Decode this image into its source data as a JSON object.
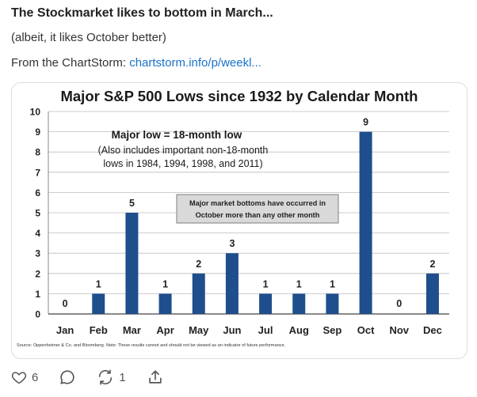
{
  "post": {
    "title": "The Stockmarket likes to bottom in March...",
    "subtitle": "(albeit, it likes October better)",
    "source_prefix": "From the ChartStorm: ",
    "source_link": "chartstorm.info/p/weekl..."
  },
  "chart_data": {
    "type": "bar",
    "title": "Major S&P 500 Lows since 1932 by Calendar Month",
    "categories": [
      "Jan",
      "Feb",
      "Mar",
      "Apr",
      "May",
      "Jun",
      "Jul",
      "Aug",
      "Sep",
      "Oct",
      "Nov",
      "Dec"
    ],
    "values": [
      0,
      1,
      5,
      1,
      2,
      3,
      1,
      1,
      1,
      9,
      0,
      2
    ],
    "ylim": [
      0,
      10
    ],
    "yticks": [
      0,
      1,
      2,
      3,
      4,
      5,
      6,
      7,
      8,
      9,
      10
    ],
    "grid": true,
    "bar_color": "#1f4e8c",
    "annotation_main": "Major  low = 18-month low",
    "annotation_sub1": "(Also includes important non-18-month",
    "annotation_sub2": "lows in 1984, 1994, 1998, and 2011)",
    "callout_line1": "Major market bottoms have occurred in",
    "callout_line2": "October more than any other month",
    "source_note": "Source:  Oppenheimer & Co. and Bloomberg.  Note: These results cannot and should not be viewed as an indicator of future performance."
  },
  "actions": {
    "like_count": "6",
    "repost_count": "1",
    "icons": [
      "heart-icon",
      "comment-icon",
      "repost-icon",
      "share-icon"
    ]
  }
}
